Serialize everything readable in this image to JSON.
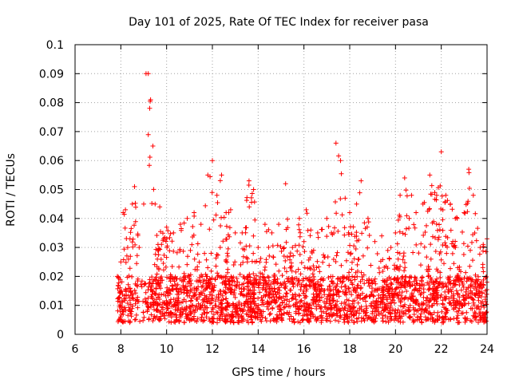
{
  "chart_data": {
    "type": "scatter",
    "title": "Day 101 of 2025, Rate Of TEC Index for receiver pasa",
    "xlabel": "GPS time / hours",
    "ylabel": "ROTI / TECUs",
    "xlim": [
      6,
      24
    ],
    "ylim": [
      0,
      0.1
    ],
    "x_ticks": [
      6,
      8,
      10,
      12,
      14,
      16,
      18,
      20,
      22,
      24
    ],
    "x_tick_labels": [
      "6",
      "8",
      "10",
      "12",
      "14",
      "16",
      "18",
      "20",
      "22",
      "24"
    ],
    "y_ticks": [
      0,
      0.01,
      0.02,
      0.03,
      0.04,
      0.05,
      0.06,
      0.07,
      0.08,
      0.09,
      0.1
    ],
    "y_tick_labels": [
      "0",
      "0.01",
      "0.02",
      "0.03",
      "0.04",
      "0.05",
      "0.06",
      "0.07",
      "0.08",
      "0.09",
      "0.1"
    ],
    "grid": true,
    "marker": "+",
    "marker_color": "#ff0000",
    "series": [
      {
        "x_start": 7.85,
        "x_end": 24.0,
        "baseline_range": [
          0.004,
          0.02
        ],
        "envelope": [
          [
            7.85,
            0.02
          ],
          [
            8.0,
            0.025
          ],
          [
            8.1,
            0.042
          ],
          [
            8.2,
            0.043
          ],
          [
            8.3,
            0.03
          ],
          [
            8.4,
            0.033
          ],
          [
            8.5,
            0.045
          ],
          [
            8.6,
            0.051
          ],
          [
            8.8,
            0.03
          ],
          [
            9.0,
            0.045
          ],
          [
            9.1,
            0.09
          ],
          [
            9.2,
            0.09
          ],
          [
            9.3,
            0.081
          ],
          [
            9.4,
            0.065
          ],
          [
            9.5,
            0.045
          ],
          [
            9.7,
            0.044
          ],
          [
            10.0,
            0.037
          ],
          [
            10.3,
            0.035
          ],
          [
            10.6,
            0.038
          ],
          [
            10.9,
            0.04
          ],
          [
            11.2,
            0.042
          ],
          [
            11.5,
            0.038
          ],
          [
            11.8,
            0.055
          ],
          [
            12.0,
            0.06
          ],
          [
            12.2,
            0.048
          ],
          [
            12.4,
            0.055
          ],
          [
            12.6,
            0.042
          ],
          [
            12.8,
            0.043
          ],
          [
            13.0,
            0.035
          ],
          [
            13.3,
            0.035
          ],
          [
            13.6,
            0.053
          ],
          [
            13.8,
            0.05
          ],
          [
            14.0,
            0.03
          ],
          [
            14.3,
            0.038
          ],
          [
            14.6,
            0.035
          ],
          [
            14.9,
            0.038
          ],
          [
            15.2,
            0.052
          ],
          [
            15.5,
            0.03
          ],
          [
            15.8,
            0.04
          ],
          [
            16.0,
            0.032
          ],
          [
            16.1,
            0.043
          ],
          [
            16.3,
            0.036
          ],
          [
            16.6,
            0.035
          ],
          [
            17.0,
            0.04
          ],
          [
            17.2,
            0.035
          ],
          [
            17.4,
            0.066
          ],
          [
            17.6,
            0.06
          ],
          [
            17.8,
            0.047
          ],
          [
            18.0,
            0.042
          ],
          [
            18.3,
            0.045
          ],
          [
            18.5,
            0.053
          ],
          [
            18.8,
            0.04
          ],
          [
            19.1,
            0.032
          ],
          [
            19.4,
            0.034
          ],
          [
            19.8,
            0.03
          ],
          [
            20.0,
            0.035
          ],
          [
            20.2,
            0.048
          ],
          [
            20.4,
            0.054
          ],
          [
            20.7,
            0.048
          ],
          [
            20.9,
            0.042
          ],
          [
            21.2,
            0.045
          ],
          [
            21.5,
            0.055
          ],
          [
            21.8,
            0.048
          ],
          [
            22.0,
            0.063
          ],
          [
            22.2,
            0.048
          ],
          [
            22.4,
            0.045
          ],
          [
            22.7,
            0.04
          ],
          [
            23.0,
            0.042
          ],
          [
            23.2,
            0.057
          ],
          [
            23.4,
            0.048
          ],
          [
            23.7,
            0.03
          ],
          [
            24.0,
            0.033
          ]
        ]
      }
    ]
  }
}
